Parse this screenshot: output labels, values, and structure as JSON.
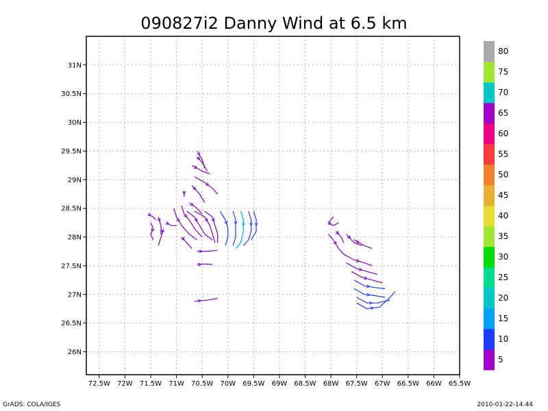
{
  "chart_data": {
    "type": "streamline",
    "title": "090827i2 Danny Wind at 6.5 km",
    "x_ticks": [
      "72.5W",
      "72W",
      "71.5W",
      "71W",
      "70.5W",
      "70W",
      "69.5W",
      "69W",
      "68.5W",
      "68W",
      "67.5W",
      "67W",
      "66.5W",
      "66W",
      "65.5W"
    ],
    "y_ticks": [
      "26N",
      "26.5N",
      "27N",
      "27.5N",
      "28N",
      "28.5N",
      "29N",
      "29.5N",
      "30N",
      "30.5N",
      "31N"
    ],
    "xlim": [
      -72.75,
      -65.5
    ],
    "ylim": [
      25.6,
      31.5
    ],
    "grid": true,
    "colorbar": {
      "labels": [
        "5",
        "10",
        "15",
        "20",
        "25",
        "30",
        "35",
        "40",
        "45",
        "50",
        "55",
        "60",
        "65",
        "70",
        "75",
        "80"
      ],
      "colors": [
        "#a000c8",
        "#1e3cff",
        "#00a0ff",
        "#00c8c8",
        "#00dc8c",
        "#00dc00",
        "#a0e632",
        "#e6dc32",
        "#e6af2d",
        "#f08228",
        "#fa3c3c",
        "#f00082",
        "#a000c8",
        "#00c8c8",
        "#a0e632",
        "#aaaaaa"
      ]
    },
    "streamlines": [
      {
        "color": "#8000c0",
        "points": [
          [
            -70.6,
            29.5
          ],
          [
            -70.5,
            29.35
          ],
          [
            -70.45,
            29.2
          ]
        ]
      },
      {
        "color": "#8000c0",
        "points": [
          [
            -70.6,
            29.4
          ],
          [
            -70.5,
            29.3
          ],
          [
            -70.4,
            29.15
          ]
        ]
      },
      {
        "color": "#8000c0",
        "points": [
          [
            -70.7,
            29.25
          ],
          [
            -70.5,
            29.15
          ],
          [
            -70.35,
            29.1
          ]
        ]
      },
      {
        "color": "#8000c0",
        "points": [
          [
            -70.65,
            29.05
          ],
          [
            -70.45,
            28.95
          ],
          [
            -70.3,
            28.85
          ],
          [
            -70.2,
            28.75
          ]
        ]
      },
      {
        "color": "#8000c0",
        "points": [
          [
            -70.7,
            28.9
          ],
          [
            -70.55,
            28.75
          ],
          [
            -70.45,
            28.6
          ]
        ]
      },
      {
        "color": "#8000c0",
        "points": [
          [
            -70.85,
            28.8
          ],
          [
            -70.85,
            28.7
          ]
        ]
      },
      {
        "color": "#8000c0",
        "points": [
          [
            -70.75,
            28.6
          ],
          [
            -70.6,
            28.5
          ],
          [
            -70.5,
            28.4
          ]
        ]
      },
      {
        "color": "#8000c0",
        "points": [
          [
            -70.9,
            28.55
          ],
          [
            -70.85,
            28.4
          ],
          [
            -70.75,
            28.3
          ],
          [
            -70.65,
            28.15
          ],
          [
            -70.5,
            28.0
          ]
        ]
      },
      {
        "color": "#8000c0",
        "points": [
          [
            -71.05,
            28.5
          ],
          [
            -71.0,
            28.35
          ],
          [
            -70.9,
            28.2
          ],
          [
            -70.75,
            28.05
          ],
          [
            -70.6,
            27.95
          ]
        ]
      },
      {
        "color": "#8000c0",
        "points": [
          [
            -70.8,
            28.45
          ],
          [
            -70.65,
            28.35
          ],
          [
            -70.55,
            28.2
          ],
          [
            -70.45,
            28.05
          ],
          [
            -70.3,
            27.95
          ]
        ]
      },
      {
        "color": "#8000c0",
        "points": [
          [
            -70.65,
            28.45
          ],
          [
            -70.45,
            28.35
          ],
          [
            -70.35,
            28.2
          ],
          [
            -70.3,
            28.05
          ],
          [
            -70.25,
            27.9
          ]
        ]
      },
      {
        "color": "#8000c0",
        "points": [
          [
            -70.45,
            28.45
          ],
          [
            -70.3,
            28.35
          ],
          [
            -70.25,
            28.2
          ],
          [
            -70.2,
            28.05
          ],
          [
            -70.2,
            27.9
          ]
        ]
      },
      {
        "color": "#1e3cff",
        "points": [
          [
            -70.15,
            28.45
          ],
          [
            -70.05,
            28.3
          ],
          [
            -70.0,
            28.15
          ],
          [
            -70.0,
            28.0
          ],
          [
            -70.05,
            27.85
          ]
        ]
      },
      {
        "color": "#1e3cff",
        "points": [
          [
            -69.9,
            28.45
          ],
          [
            -69.85,
            28.3
          ],
          [
            -69.85,
            28.15
          ],
          [
            -69.85,
            28.0
          ],
          [
            -69.9,
            27.85
          ]
        ]
      },
      {
        "color": "#00a0ff",
        "points": [
          [
            -69.75,
            28.45
          ],
          [
            -69.7,
            28.3
          ],
          [
            -69.7,
            28.1
          ],
          [
            -69.75,
            27.9
          ],
          [
            -69.85,
            27.8
          ]
        ]
      },
      {
        "color": "#1e3cff",
        "points": [
          [
            -69.6,
            28.45
          ],
          [
            -69.55,
            28.3
          ],
          [
            -69.55,
            28.1
          ],
          [
            -69.6,
            27.95
          ],
          [
            -69.7,
            27.85
          ]
        ]
      },
      {
        "color": "#1e3cff",
        "points": [
          [
            -69.5,
            28.45
          ],
          [
            -69.45,
            28.3
          ],
          [
            -69.45,
            28.1
          ],
          [
            -69.55,
            27.95
          ]
        ]
      },
      {
        "color": "#8000c0",
        "points": [
          [
            -71.55,
            28.4
          ],
          [
            -71.45,
            28.35
          ],
          [
            -71.4,
            28.3
          ]
        ]
      },
      {
        "color": "#8000c0",
        "points": [
          [
            -71.5,
            28.25
          ],
          [
            -71.45,
            28.15
          ],
          [
            -71.5,
            28.05
          ],
          [
            -71.45,
            27.95
          ]
        ]
      },
      {
        "color": "#8000c0",
        "points": [
          [
            -71.35,
            28.35
          ],
          [
            -71.3,
            28.2
          ],
          [
            -71.3,
            28.05
          ]
        ]
      },
      {
        "color": "#8000c0",
        "points": [
          [
            -71.25,
            28.15
          ],
          [
            -71.3,
            28.0
          ],
          [
            -71.35,
            27.85
          ]
        ]
      },
      {
        "color": "#8000c0",
        "points": [
          [
            -71.2,
            28.25
          ],
          [
            -71.1,
            28.2
          ],
          [
            -71.0,
            28.2
          ]
        ]
      },
      {
        "color": "#8000c0",
        "points": [
          [
            -70.9,
            28.0
          ],
          [
            -70.8,
            27.9
          ],
          [
            -70.7,
            27.8
          ]
        ]
      },
      {
        "color": "#8000c0",
        "points": [
          [
            -70.6,
            27.75
          ],
          [
            -70.4,
            27.75
          ],
          [
            -70.2,
            27.77
          ]
        ]
      },
      {
        "color": "#8000c0",
        "points": [
          [
            -70.6,
            27.52
          ],
          [
            -70.45,
            27.53
          ],
          [
            -70.3,
            27.52
          ]
        ]
      },
      {
        "color": "#8000c0",
        "points": [
          [
            -70.65,
            26.88
          ],
          [
            -70.4,
            26.9
          ],
          [
            -70.2,
            26.93
          ]
        ]
      },
      {
        "color": "#8000c0",
        "points": [
          [
            -67.95,
            28.35
          ],
          [
            -68.05,
            28.25
          ],
          [
            -67.95,
            28.2
          ],
          [
            -67.85,
            28.25
          ]
        ]
      },
      {
        "color": "#8000c0",
        "points": [
          [
            -67.9,
            28.1
          ],
          [
            -67.8,
            28.0
          ],
          [
            -67.75,
            27.9
          ]
        ]
      },
      {
        "color": "#8000c0",
        "points": [
          [
            -68.05,
            28.05
          ],
          [
            -67.95,
            27.95
          ],
          [
            -67.85,
            27.8
          ],
          [
            -67.75,
            27.7
          ]
        ]
      },
      {
        "color": "#8000c0",
        "points": [
          [
            -67.7,
            28.05
          ],
          [
            -67.55,
            27.9
          ],
          [
            -67.4,
            27.85
          ]
        ]
      },
      {
        "color": "#8000c0",
        "points": [
          [
            -67.55,
            27.95
          ],
          [
            -67.35,
            27.85
          ],
          [
            -67.2,
            27.8
          ]
        ]
      },
      {
        "color": "#8000c0",
        "points": [
          [
            -67.75,
            27.7
          ],
          [
            -67.55,
            27.6
          ],
          [
            -67.35,
            27.55
          ],
          [
            -67.2,
            27.5
          ]
        ]
      },
      {
        "color": "#8000c0",
        "points": [
          [
            -67.7,
            27.55
          ],
          [
            -67.5,
            27.45
          ],
          [
            -67.3,
            27.4
          ],
          [
            -67.1,
            27.35
          ]
        ]
      },
      {
        "color": "#8000c0",
        "points": [
          [
            -67.6,
            27.4
          ],
          [
            -67.4,
            27.3
          ],
          [
            -67.2,
            27.25
          ],
          [
            -67.0,
            27.2
          ]
        ]
      },
      {
        "color": "#1e3cff",
        "points": [
          [
            -67.55,
            27.25
          ],
          [
            -67.35,
            27.15
          ],
          [
            -67.15,
            27.12
          ],
          [
            -66.95,
            27.1
          ]
        ]
      },
      {
        "color": "#1e3cff",
        "points": [
          [
            -67.55,
            27.1
          ],
          [
            -67.35,
            27.0
          ],
          [
            -67.15,
            26.98
          ],
          [
            -66.95,
            26.95
          ]
        ]
      },
      {
        "color": "#1e3cff",
        "points": [
          [
            -67.5,
            26.95
          ],
          [
            -67.3,
            26.85
          ],
          [
            -67.1,
            26.85
          ],
          [
            -66.85,
            26.9
          ]
        ]
      },
      {
        "color": "#1e3cff",
        "points": [
          [
            -67.5,
            26.85
          ],
          [
            -67.3,
            26.75
          ],
          [
            -67.05,
            26.78
          ],
          [
            -66.85,
            26.95
          ],
          [
            -66.75,
            27.05
          ]
        ]
      }
    ]
  },
  "footer": {
    "left": "GrADS: COLA/IGES",
    "right": "2010-01-22-14:44"
  }
}
